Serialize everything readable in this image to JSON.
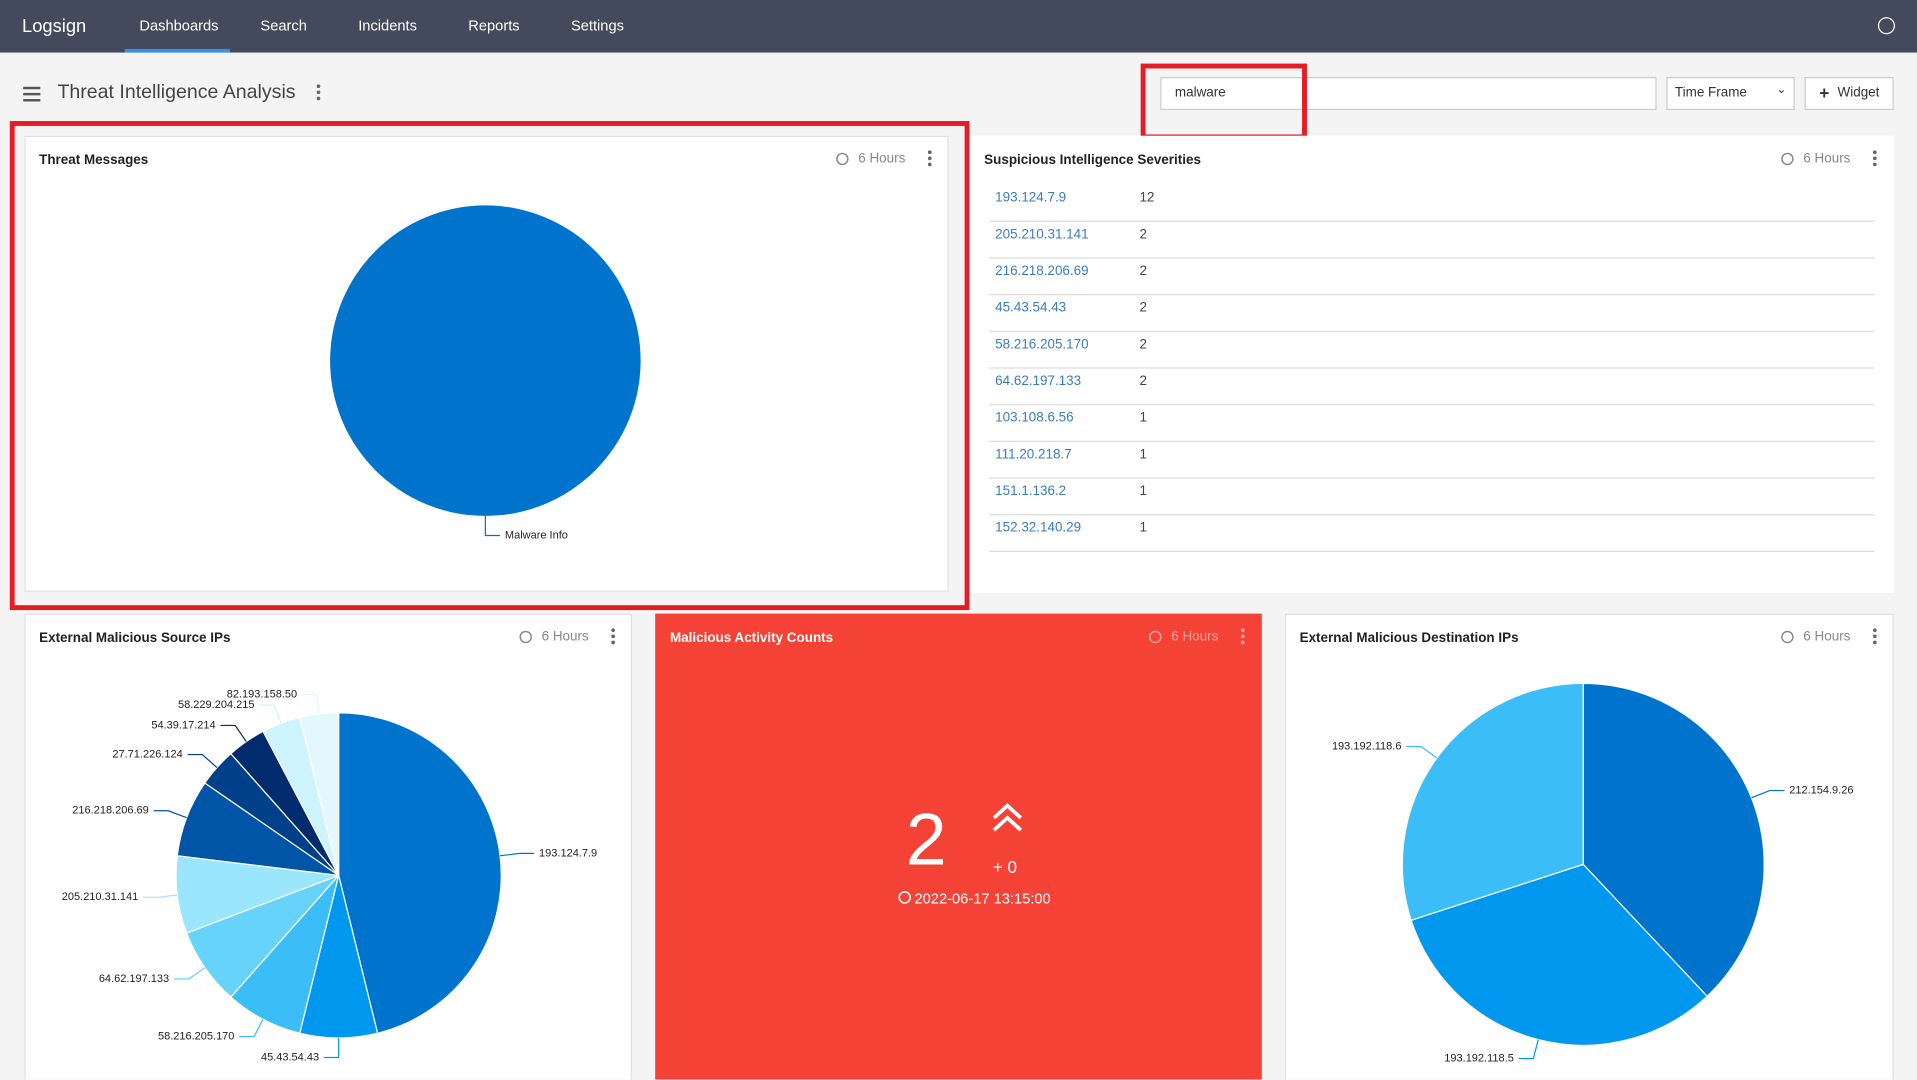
{
  "nav": {
    "logo": "Logsign",
    "items": [
      "Dashboards",
      "Search",
      "Incidents",
      "Reports",
      "Settings"
    ]
  },
  "page": {
    "title": "Threat Intelligence Analysis",
    "search": "malware",
    "timeframe": "Time Frame",
    "add_widget": "Widget"
  },
  "widgets": {
    "threat_messages": {
      "title": "Threat Messages",
      "time": "6 Hours",
      "chart": {
        "type": "pie",
        "categories": [
          "Malware Info"
        ],
        "values": [
          26
        ],
        "colors": [
          "#0074cc"
        ]
      }
    },
    "severities": {
      "title": "Suspicious Intelligence Severities",
      "time": "6 Hours",
      "rows": [
        [
          "193.124.7.9",
          "12"
        ],
        [
          "205.210.31.141",
          "2"
        ],
        [
          "216.218.206.69",
          "2"
        ],
        [
          "45.43.54.43",
          "2"
        ],
        [
          "58.216.205.170",
          "2"
        ],
        [
          "64.62.197.133",
          "2"
        ],
        [
          "103.108.6.56",
          "1"
        ],
        [
          "111.20.218.7",
          "1"
        ],
        [
          "151.1.136.2",
          "1"
        ],
        [
          "152.32.140.29",
          "1"
        ]
      ]
    },
    "source_ips": {
      "title": "External Malicious Source IPs",
      "time": "6 Hours",
      "chart": {
        "type": "pie",
        "categories": [
          "193.124.7.9",
          "45.43.54.43",
          "58.216.205.170",
          "64.62.197.133",
          "205.210.31.141",
          "216.218.206.69",
          "27.71.226.124",
          "54.39.17.214",
          "58.229.204.215",
          "82.193.158.50"
        ],
        "values": [
          12,
          2,
          2,
          2,
          2,
          2,
          1,
          1,
          1,
          1
        ],
        "colors": [
          "#0074cc",
          "#0098ef",
          "#3bbdf7",
          "#67d3fa",
          "#9ae6fc",
          "#0055a6",
          "#003f8a",
          "#002b6d",
          "#cdf3fd",
          "#e2f8fe"
        ]
      }
    },
    "activity": {
      "title": "Malicious Activity Counts",
      "time": "6 Hours",
      "value": "2",
      "change": "+ 0",
      "timestamp": "2022-06-17 13:15:00"
    },
    "dest_ips": {
      "title": "External Malicious Destination IPs",
      "time": "6 Hours",
      "chart": {
        "type": "pie",
        "categories": [
          "212.154.9.26",
          "193.192.118.5",
          "193.192.118.6"
        ],
        "values": [
          38,
          32,
          30
        ],
        "colors": [
          "#0074cc",
          "#0098ef",
          "#3bbdf7"
        ]
      }
    }
  }
}
